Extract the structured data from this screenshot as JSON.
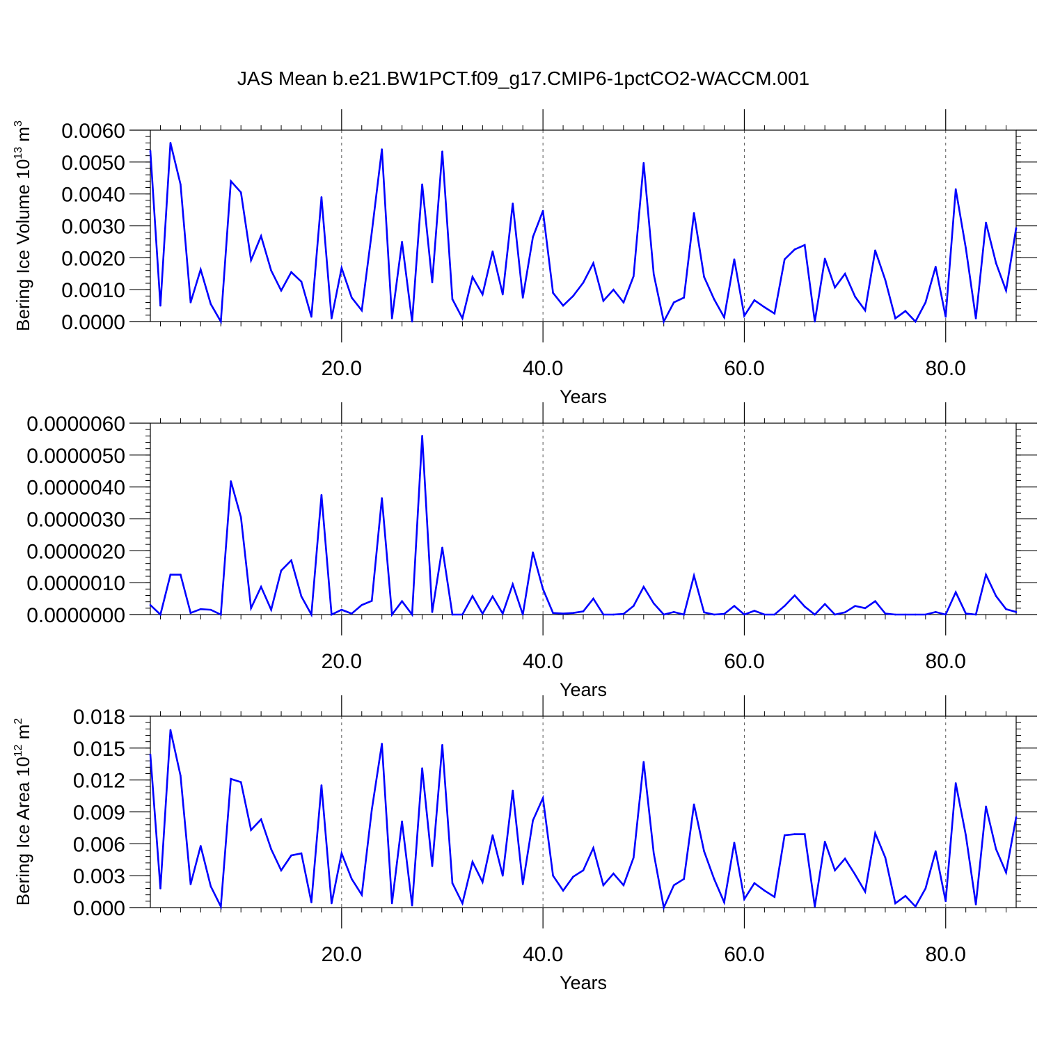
{
  "title": "JAS Mean b.e21.BW1PCT.f09_g17.CMIP6-1pctCO2-WACCM.001",
  "line_color": "#0000ff",
  "chart_data": [
    {
      "type": "line",
      "ylabel": "Bering Ice Volume 10",
      "ylabel_sup": "13",
      "ylabel_unit": " m",
      "ylabel_unit_sup": "3",
      "xlabel": "Years",
      "xlim": [
        1,
        87
      ],
      "ylim": [
        0,
        0.006
      ],
      "xticks": [
        "20.0",
        "40.0",
        "60.0",
        "80.0"
      ],
      "xtick_values": [
        20,
        40,
        60,
        80
      ],
      "yticks": [
        "0.0000",
        "0.0010",
        "0.0020",
        "0.0030",
        "0.0040",
        "0.0050",
        "0.0060"
      ],
      "ytick_values": [
        0,
        0.001,
        0.002,
        0.003,
        0.004,
        0.005,
        0.006
      ],
      "ytick_minor": 0.0002,
      "grid": "vertical dashed at major x ticks",
      "x": [
        1,
        2,
        3,
        4,
        5,
        6,
        7,
        8,
        9,
        10,
        11,
        12,
        13,
        14,
        15,
        16,
        17,
        18,
        19,
        20,
        21,
        22,
        23,
        24,
        25,
        26,
        27,
        28,
        29,
        30,
        31,
        32,
        33,
        34,
        35,
        36,
        37,
        38,
        39,
        40,
        41,
        42,
        43,
        44,
        45,
        46,
        47,
        48,
        49,
        50,
        51,
        52,
        53,
        54,
        55,
        56,
        57,
        58,
        59,
        60,
        61,
        62,
        63,
        64,
        65,
        66,
        67,
        68,
        69,
        70,
        71,
        72,
        73,
        74,
        75,
        76,
        77,
        78,
        79,
        80,
        81,
        82,
        83,
        84,
        85,
        86,
        87
      ],
      "values": [
        0.00535,
        0.0005,
        0.0056,
        0.0043,
        0.0006,
        0.00163,
        0.00055,
        0.0,
        0.0044,
        0.00405,
        0.00192,
        0.00268,
        0.0016,
        0.00097,
        0.00155,
        0.00125,
        0.00015,
        0.0039,
        0.0001,
        0.00168,
        0.00075,
        0.00035,
        0.0028,
        0.0054,
        0.0001,
        0.0025,
        0.0,
        0.0043,
        0.00123,
        0.00533,
        0.0007,
        0.0001,
        0.0014,
        0.00085,
        0.0022,
        0.00085,
        0.0037,
        0.00075,
        0.00265,
        0.00347,
        0.0009,
        0.0005,
        0.0008,
        0.00122,
        0.00183,
        0.00065,
        0.001,
        0.0006,
        0.00142,
        0.00497,
        0.00148,
        0.0,
        0.0006,
        0.00075,
        0.0034,
        0.0014,
        0.0007,
        0.00013,
        0.00195,
        0.00018,
        0.00067,
        0.00045,
        0.00025,
        0.00195,
        0.00226,
        0.0024,
        0.0,
        0.00197,
        0.00107,
        0.0015,
        0.00078,
        0.00035,
        0.00223,
        0.0013,
        0.0001,
        0.00033,
        0.0,
        0.0006,
        0.00172,
        0.00015,
        0.00415,
        0.0023,
        0.0001,
        0.0031,
        0.00183,
        0.00097,
        0.00293
      ]
    },
    {
      "type": "line",
      "ylabel": "",
      "xlabel": "Years",
      "xlim": [
        1,
        87
      ],
      "ylim": [
        0,
        6e-06
      ],
      "xticks": [
        "20.0",
        "40.0",
        "60.0",
        "80.0"
      ],
      "xtick_values": [
        20,
        40,
        60,
        80
      ],
      "yticks": [
        "0.0000000",
        "0.0000010",
        "0.0000020",
        "0.0000030",
        "0.0000040",
        "0.0000050",
        "0.0000060"
      ],
      "ytick_values": [
        0,
        1e-06,
        2e-06,
        3e-06,
        4e-06,
        5e-06,
        6e-06
      ],
      "ytick_minor": 2e-07,
      "grid": "vertical dashed at major x ticks",
      "x": [
        1,
        2,
        3,
        4,
        5,
        6,
        7,
        8,
        9,
        10,
        11,
        12,
        13,
        14,
        15,
        16,
        17,
        18,
        19,
        20,
        21,
        22,
        23,
        24,
        25,
        26,
        27,
        28,
        29,
        30,
        31,
        32,
        33,
        34,
        35,
        36,
        37,
        38,
        39,
        40,
        41,
        42,
        43,
        44,
        45,
        46,
        47,
        48,
        49,
        50,
        51,
        52,
        53,
        54,
        55,
        56,
        57,
        58,
        59,
        60,
        61,
        62,
        63,
        64,
        65,
        66,
        67,
        68,
        69,
        70,
        71,
        72,
        73,
        74,
        75,
        76,
        77,
        78,
        79,
        80,
        81,
        82,
        83,
        84,
        85,
        86,
        87
      ],
      "values": [
        3e-07,
        0.0,
        1.25e-06,
        1.25e-06,
        5e-08,
        1.7e-07,
        1.5e-07,
        0.0,
        4.18e-06,
        3.05e-06,
        2e-07,
        8.7e-07,
        1.5e-07,
        1.38e-06,
        1.7e-06,
        5.7e-07,
        0.0,
        3.75e-06,
        0.0,
        1.5e-07,
        3e-08,
        3e-07,
        4.3e-07,
        3.65e-06,
        0.0,
        4.2e-07,
        0.0,
        5.6e-06,
        8e-08,
        2.1e-06,
        0.0,
        0.0,
        5.8e-07,
        3e-08,
        5.7e-07,
        3e-08,
        9.5e-07,
        0.0,
        1.95e-06,
        8e-07,
        5e-08,
        3e-08,
        5e-08,
        1e-07,
        5e-07,
        0.0,
        0.0,
        2e-08,
        2.7e-07,
        8.7e-07,
        3.5e-07,
        0.0,
        8e-08,
        0.0,
        1.22e-06,
        7e-08,
        0.0,
        2e-08,
        2.7e-07,
        0.0,
        1.2e-07,
        0.0,
        0.0,
        2.7e-07,
        6e-07,
        2.5e-07,
        0.0,
        3.3e-07,
        0.0,
        7e-08,
        2.7e-07,
        2e-07,
        4.2e-07,
        3e-08,
        0.0,
        0.0,
        0.0,
        0.0,
        8e-08,
        0.0,
        7e-07,
        3e-08,
        0.0,
        1.25e-06,
        5.8e-07,
        1.7e-07,
        8e-08
      ]
    },
    {
      "type": "line",
      "ylabel": "Bering Ice Area 10",
      "ylabel_sup": "12",
      "ylabel_unit": " m",
      "ylabel_unit_sup": "2",
      "xlabel": "Years",
      "xlim": [
        1,
        87
      ],
      "ylim": [
        0,
        0.018
      ],
      "xticks": [
        "20.0",
        "40.0",
        "60.0",
        "80.0"
      ],
      "xtick_values": [
        20,
        40,
        60,
        80
      ],
      "yticks": [
        "0.000",
        "0.003",
        "0.006",
        "0.009",
        "0.012",
        "0.015",
        "0.018"
      ],
      "ytick_values": [
        0,
        0.003,
        0.006,
        0.009,
        0.012,
        0.015,
        0.018
      ],
      "ytick_minor": 0.0006,
      "grid": "vertical dashed at major x ticks",
      "x": [
        1,
        2,
        3,
        4,
        5,
        6,
        7,
        8,
        9,
        10,
        11,
        12,
        13,
        14,
        15,
        16,
        17,
        18,
        19,
        20,
        21,
        22,
        23,
        24,
        25,
        26,
        27,
        28,
        29,
        30,
        31,
        32,
        33,
        34,
        35,
        36,
        37,
        38,
        39,
        40,
        41,
        42,
        43,
        44,
        45,
        46,
        47,
        48,
        49,
        50,
        51,
        52,
        53,
        54,
        55,
        56,
        57,
        58,
        59,
        60,
        61,
        62,
        63,
        64,
        65,
        66,
        67,
        68,
        69,
        70,
        71,
        72,
        73,
        74,
        75,
        76,
        77,
        78,
        79,
        80,
        81,
        82,
        83,
        84,
        85,
        86,
        87
      ],
      "values": [
        0.0144,
        0.0018,
        0.0167,
        0.0124,
        0.0022,
        0.0058,
        0.002,
        0.0001,
        0.0121,
        0.0118,
        0.0073,
        0.0083,
        0.0055,
        0.0035,
        0.0049,
        0.0051,
        0.0005,
        0.0115,
        0.0004,
        0.0051,
        0.0027,
        0.0012,
        0.0092,
        0.0154,
        0.0004,
        0.0081,
        0.0002,
        0.0131,
        0.0039,
        0.0153,
        0.0023,
        0.0004,
        0.0043,
        0.0024,
        0.0068,
        0.003,
        0.011,
        0.0022,
        0.0082,
        0.0103,
        0.003,
        0.0016,
        0.0029,
        0.0035,
        0.0056,
        0.0021,
        0.0032,
        0.0021,
        0.0047,
        0.0137,
        0.0051,
        0.0,
        0.0021,
        0.0027,
        0.0097,
        0.0053,
        0.0027,
        0.0005,
        0.0061,
        0.0008,
        0.0023,
        0.0016,
        0.001,
        0.0068,
        0.0069,
        0.0069,
        0.0001,
        0.0062,
        0.0035,
        0.0046,
        0.0031,
        0.0015,
        0.007,
        0.0047,
        0.0004,
        0.0011,
        0.0001,
        0.0018,
        0.0053,
        0.0006,
        0.0117,
        0.0068,
        0.0003,
        0.0095,
        0.0055,
        0.0033,
        0.0085
      ]
    }
  ]
}
